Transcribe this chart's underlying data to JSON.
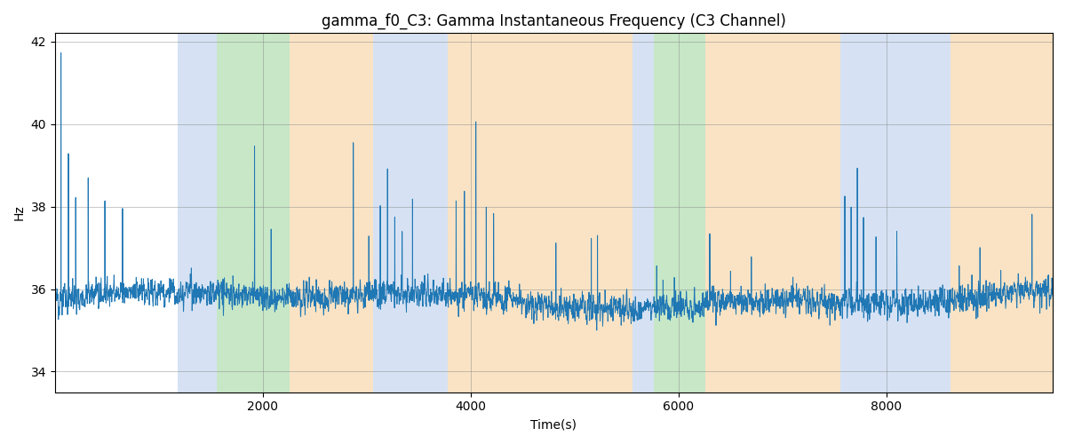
{
  "title": "gamma_f0_C3: Gamma Instantaneous Frequency (C3 Channel)",
  "xlabel": "Time(s)",
  "ylabel": "Hz",
  "ylim": [
    33.5,
    42.2
  ],
  "xlim": [
    0,
    9600
  ],
  "xticks": [
    2000,
    4000,
    6000,
    8000
  ],
  "yticks": [
    34,
    36,
    38,
    40,
    42
  ],
  "line_color": "#1f77b4",
  "line_width": 0.7,
  "title_fontsize": 12,
  "label_fontsize": 10,
  "background_color": "#ffffff",
  "colored_bands": [
    {
      "xmin": 1180,
      "xmax": 1560,
      "color": "#aec6e8",
      "alpha": 0.5
    },
    {
      "xmin": 1560,
      "xmax": 2260,
      "color": "#90d090",
      "alpha": 0.5
    },
    {
      "xmin": 2260,
      "xmax": 3060,
      "color": "#f5c98a",
      "alpha": 0.5
    },
    {
      "xmin": 3060,
      "xmax": 3560,
      "color": "#aec6e8",
      "alpha": 0.5
    },
    {
      "xmin": 3560,
      "xmax": 3780,
      "color": "#aec6e8",
      "alpha": 0.5
    },
    {
      "xmin": 3780,
      "xmax": 5560,
      "color": "#f5c98a",
      "alpha": 0.5
    },
    {
      "xmin": 5560,
      "xmax": 5760,
      "color": "#aec6e8",
      "alpha": 0.5
    },
    {
      "xmin": 5760,
      "xmax": 6260,
      "color": "#90d090",
      "alpha": 0.5
    },
    {
      "xmin": 6260,
      "xmax": 7560,
      "color": "#f5c98a",
      "alpha": 0.5
    },
    {
      "xmin": 7560,
      "xmax": 8620,
      "color": "#aec6e8",
      "alpha": 0.5
    },
    {
      "xmin": 8620,
      "xmax": 9600,
      "color": "#f5c98a",
      "alpha": 0.5
    }
  ],
  "seed": 12345,
  "n_points": 9500,
  "base_freq": 35.75,
  "noise_std": 0.38
}
